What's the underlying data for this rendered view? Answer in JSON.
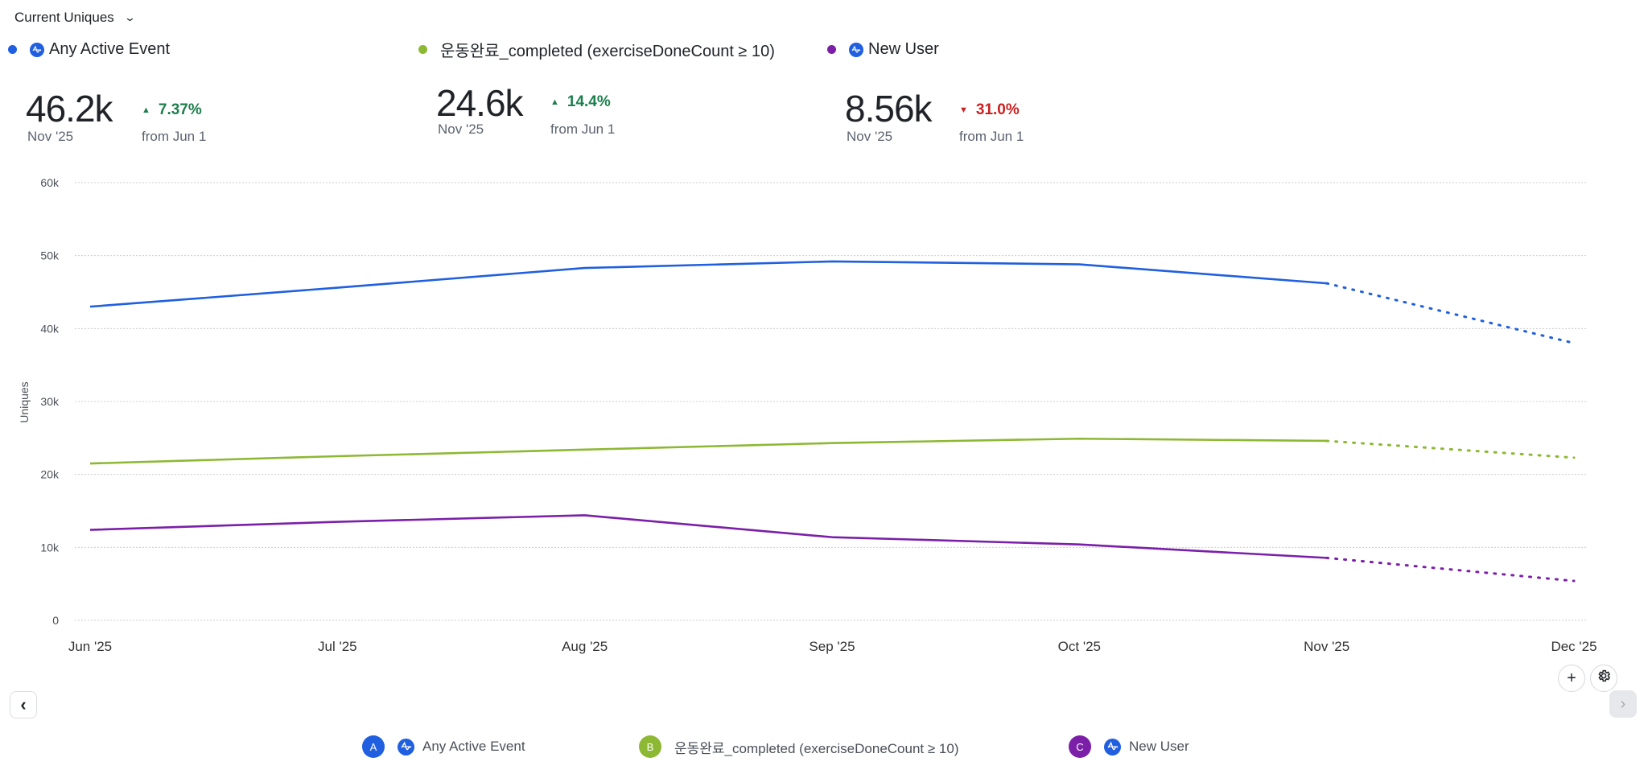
{
  "header": {
    "metric_selector": "Current Uniques"
  },
  "series": [
    {
      "key": "A",
      "name": "Any Active Event",
      "color": "#1f5fe0",
      "has_event_icon": true,
      "current_value": "46.2k",
      "current_period": "Nov '25",
      "delta": "7.37%",
      "delta_direction": "up",
      "delta_from": "from Jun 1"
    },
    {
      "key": "B",
      "name": "운동완료_completed (exerciseDoneCount ≥ 10)",
      "color": "#8db833",
      "has_event_icon": false,
      "current_value": "24.6k",
      "current_period": "Nov '25",
      "delta": "14.4%",
      "delta_direction": "up",
      "delta_from": "from Jun 1"
    },
    {
      "key": "C",
      "name": "New User",
      "color": "#7b1fa8",
      "has_event_icon": true,
      "current_value": "8.56k",
      "current_period": "Nov '25",
      "delta": "31.0%",
      "delta_direction": "down",
      "delta_from": "from Jun 1"
    }
  ],
  "controls": {
    "add_icon": "+",
    "settings_icon": "gear",
    "prev_icon": "‹",
    "next_icon": "›"
  },
  "chart_data": {
    "type": "line",
    "title": "",
    "xlabel": "",
    "ylabel": "Uniques",
    "ylim": [
      0,
      60000
    ],
    "y_ticks": [
      0,
      10000,
      20000,
      30000,
      40000,
      50000,
      60000
    ],
    "y_tick_labels": [
      "0",
      "10k",
      "20k",
      "30k",
      "40k",
      "50k",
      "60k"
    ],
    "grid": true,
    "categories": [
      "Jun '25",
      "Jul '25",
      "Aug '25",
      "Sep '25",
      "Oct '25",
      "Nov '25",
      "Dec '25"
    ],
    "incomplete_from_index": 5,
    "series": [
      {
        "name": "Any Active Event",
        "color": "#1f5fe0",
        "values": [
          43000,
          45600,
          48300,
          49200,
          48800,
          46200,
          38000
        ]
      },
      {
        "name": "운동완료_completed (exerciseDoneCount ≥ 10)",
        "color": "#8db833",
        "values": [
          21500,
          22500,
          23400,
          24300,
          24900,
          24600,
          22300
        ]
      },
      {
        "name": "New User",
        "color": "#7b1fa8",
        "values": [
          12400,
          13500,
          14400,
          11400,
          10400,
          8560,
          5400
        ]
      }
    ],
    "legend": [
      "A Any Active Event",
      "B 운동완료_completed (exerciseDoneCount ≥ 10)",
      "C New User"
    ],
    "legend_position": "bottom"
  }
}
